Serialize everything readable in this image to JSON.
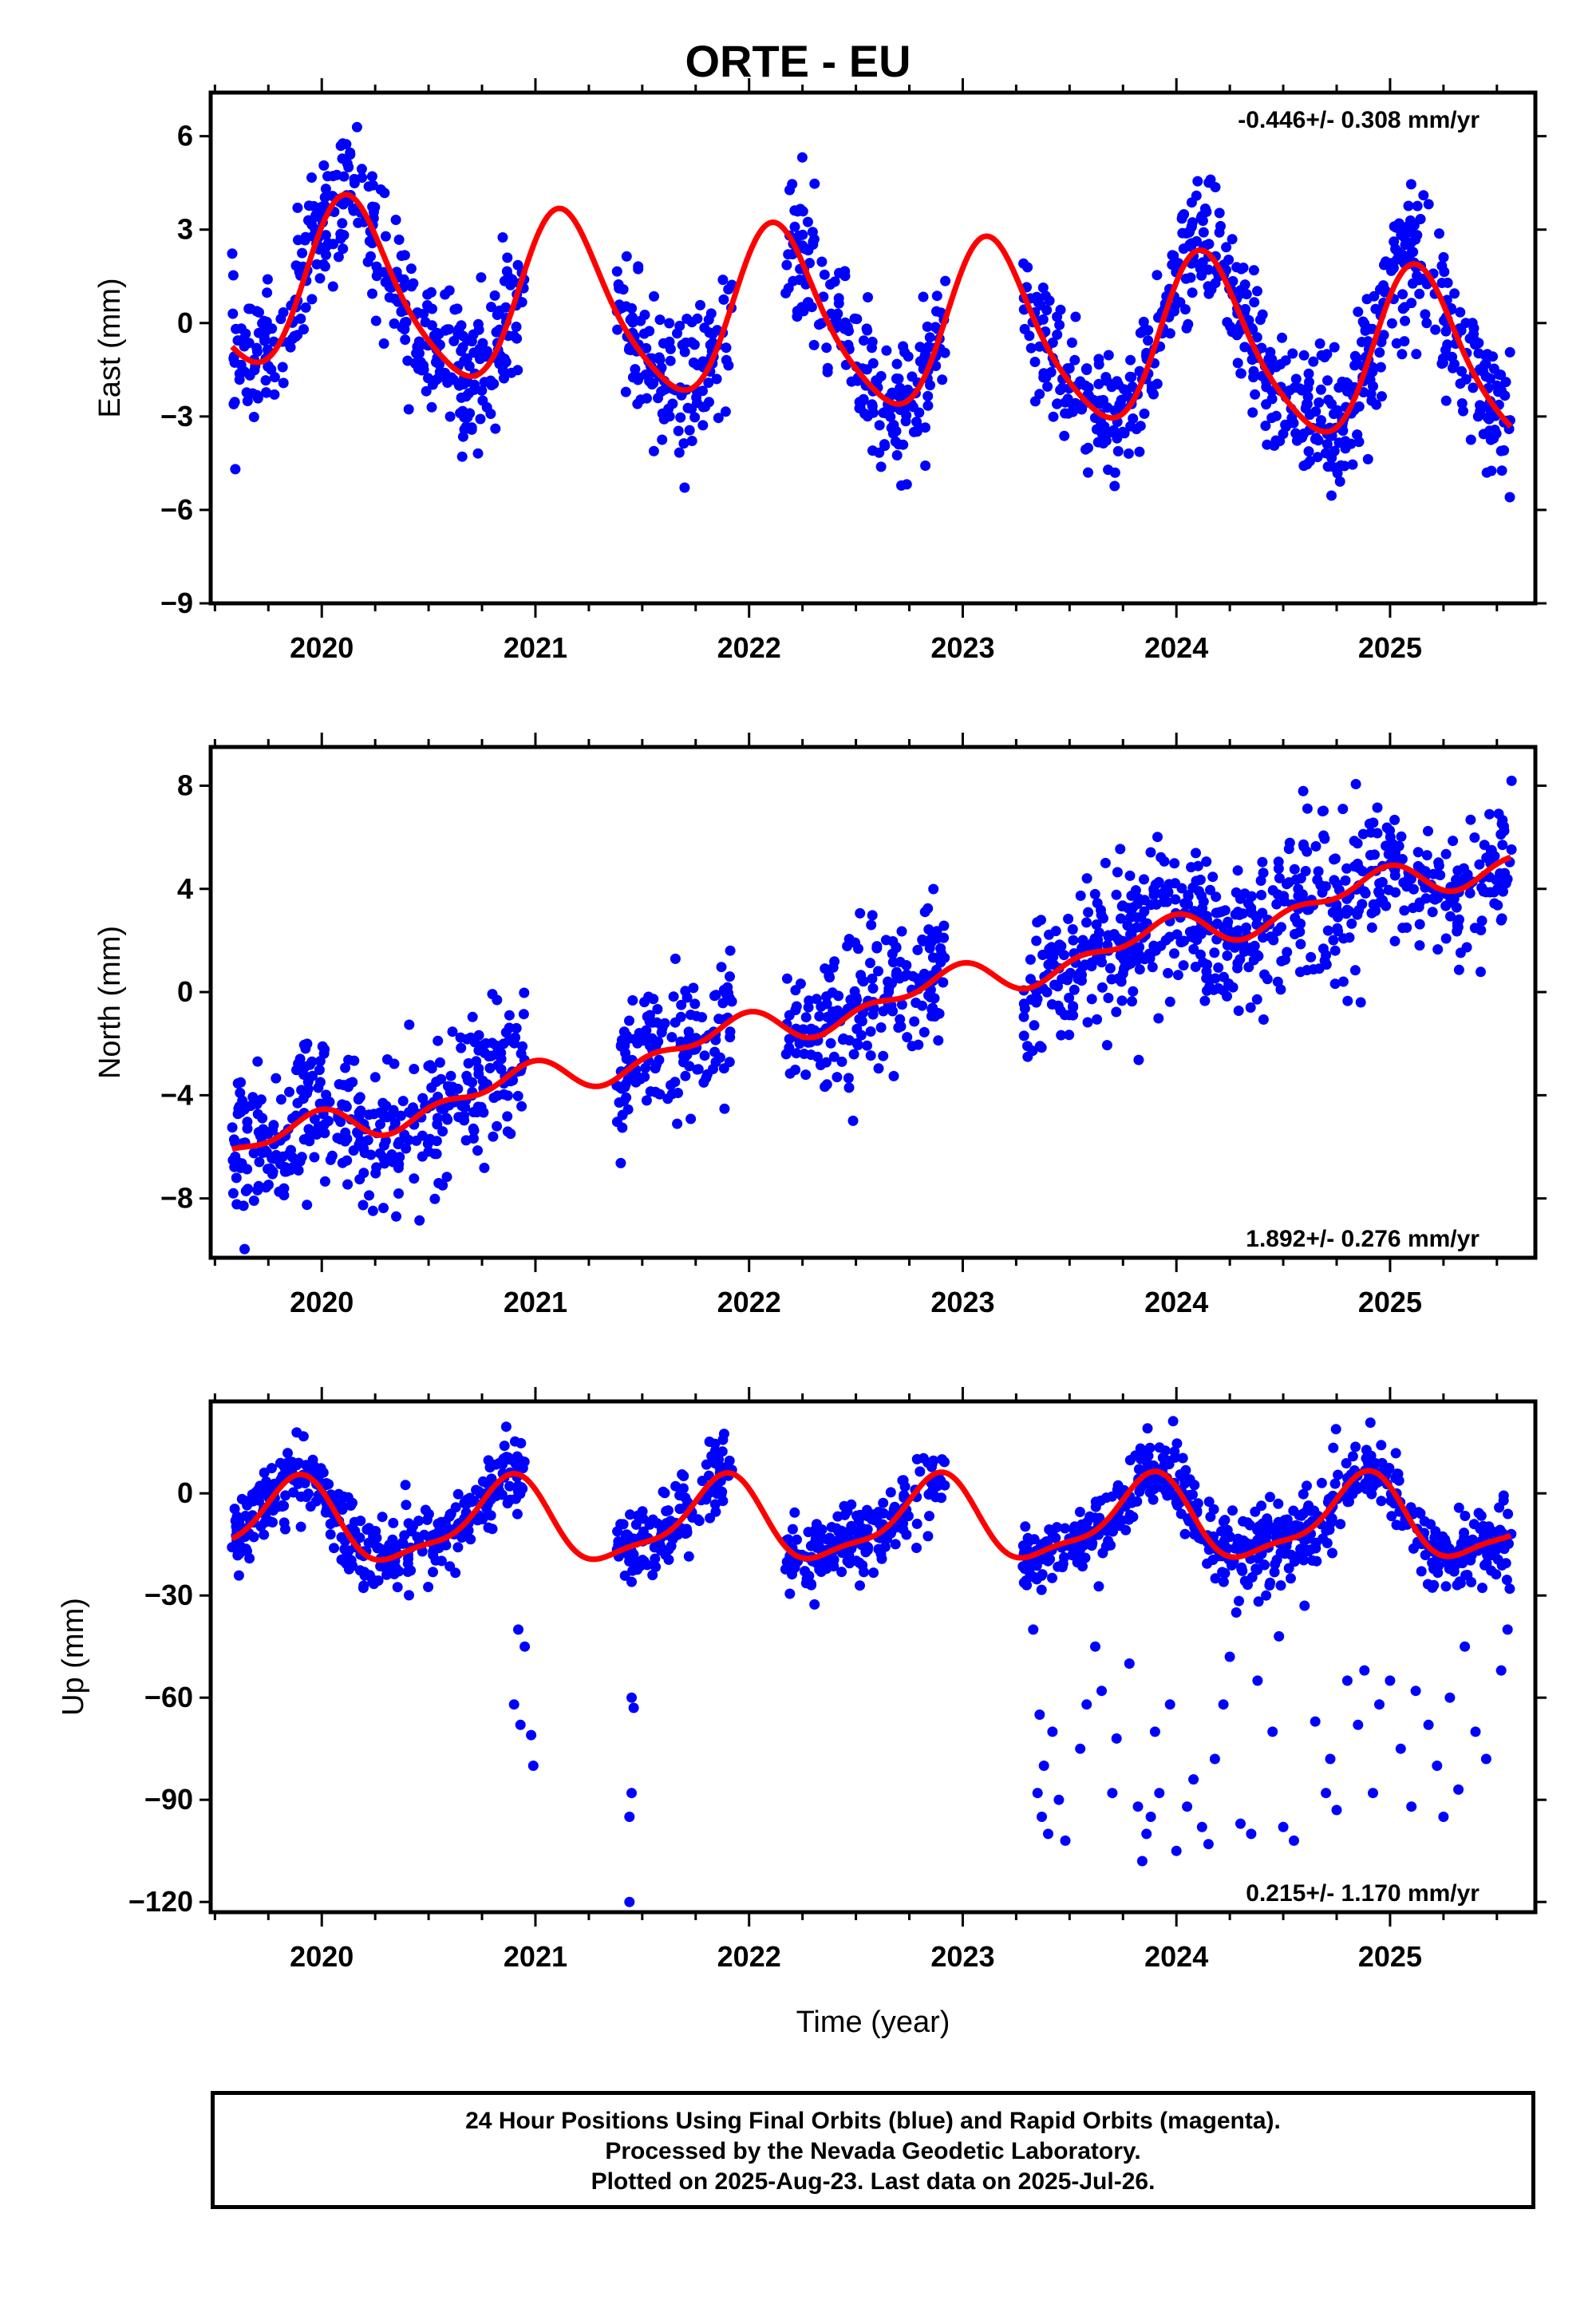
{
  "title": "ORTE - EU",
  "footer": {
    "line1": "24 Hour Positions Using Final Orbits (blue) and Rapid Orbits (magenta).",
    "line2": "Processed by the Nevada Geodetic Laboratory.",
    "line3": "Plotted on 2025-Aug-23. Last data on 2025-Jul-26."
  },
  "colors": {
    "points": "#0000ff",
    "fit": "#ff0000",
    "frame": "#000000"
  },
  "chart_data": [
    {
      "type": "scatter",
      "ylabel": "East (mm)",
      "xlabel": "",
      "xlim": [
        2019.48,
        2025.68
      ],
      "ylim": [
        -9,
        7.4
      ],
      "yticks": [
        -9,
        -6,
        -3,
        0,
        3,
        6
      ],
      "xticks": [
        2020,
        2021,
        2022,
        2023,
        2024,
        2025
      ],
      "rate_text": "-0.446+/- 0.308 mm/yr",
      "rate_position": "top-right",
      "series": [
        {
          "kind": "points",
          "segments": [
            [
              2019.58,
              2020.95
            ],
            [
              2021.38,
              2021.92
            ],
            [
              2022.17,
              2022.92
            ],
            [
              2023.28,
              2025.57
            ]
          ],
          "model": {
            "t0": 2022.5,
            "offset": 0.0,
            "trend": -0.446,
            "a1": 2.7,
            "p1": 0.11,
            "a2": 0.45,
            "p2": 0.55,
            "noise": 1.1
          }
        },
        {
          "kind": "fit",
          "model": {
            "t0": 2022.5,
            "offset": 0.0,
            "trend": -0.446,
            "a1": 2.7,
            "p1": 0.11,
            "a2": 0.45,
            "p2": 0.55
          }
        }
      ]
    },
    {
      "type": "scatter",
      "ylabel": "North (mm)",
      "xlabel": "",
      "xlim": [
        2019.48,
        2025.68
      ],
      "ylim": [
        -10.3,
        9.5
      ],
      "yticks": [
        -8,
        -4,
        0,
        4,
        8
      ],
      "xticks": [
        2020,
        2021,
        2022,
        2023,
        2024,
        2025
      ],
      "rate_text": "1.892+/- 0.276 mm/yr",
      "rate_position": "bottom-right",
      "series": [
        {
          "kind": "points",
          "segments": [
            [
              2019.58,
              2020.95
            ],
            [
              2021.38,
              2021.92
            ],
            [
              2022.17,
              2022.92
            ],
            [
              2023.28,
              2025.57
            ]
          ],
          "model": {
            "t0": 2022.5,
            "offset": -0.6,
            "trend": 1.892,
            "a1": 0.55,
            "p1": 0.35,
            "a2": 0.35,
            "p2": 0.6,
            "noise": 1.4
          }
        },
        {
          "kind": "fit",
          "model": {
            "t0": 2022.5,
            "offset": -0.6,
            "trend": 1.892,
            "a1": 0.55,
            "p1": 0.35,
            "a2": 0.35,
            "p2": 0.6
          }
        }
      ]
    },
    {
      "type": "scatter",
      "ylabel": "Up (mm)",
      "xlabel": "Time (year)",
      "xlim": [
        2019.48,
        2025.68
      ],
      "ylim": [
        -123,
        27
      ],
      "yticks": [
        -120,
        -90,
        -60,
        -30,
        0
      ],
      "xticks": [
        2020,
        2021,
        2022,
        2023,
        2024,
        2025
      ],
      "rate_text": "0.215+/- 1.170 mm/yr",
      "rate_position": "bottom-right",
      "series": [
        {
          "kind": "points",
          "segments": [
            [
              2019.58,
              2020.95
            ],
            [
              2021.38,
              2021.92
            ],
            [
              2022.17,
              2022.92
            ],
            [
              2023.28,
              2025.57
            ]
          ],
          "model": {
            "t0": 2022.5,
            "offset": -8.5,
            "trend": 0.215,
            "a1": 11.5,
            "p1": 0.38,
            "a2": 3.5,
            "p2": 0.7,
            "noise": 5.5
          },
          "outliers": [
            [
              2020.92,
              -40
            ],
            [
              2020.95,
              -45
            ],
            [
              2020.9,
              -62
            ],
            [
              2020.93,
              -68
            ],
            [
              2020.98,
              -71
            ],
            [
              2020.99,
              -80
            ],
            [
              2021.45,
              -26
            ],
            [
              2021.45,
              -60
            ],
            [
              2021.46,
              -63
            ],
            [
              2021.45,
              -88
            ],
            [
              2021.44,
              -95
            ],
            [
              2021.44,
              -120
            ],
            [
              2023.33,
              -40
            ],
            [
              2023.36,
              -65
            ],
            [
              2023.38,
              -80
            ],
            [
              2023.35,
              -88
            ],
            [
              2023.37,
              -95
            ],
            [
              2023.4,
              -100
            ],
            [
              2023.42,
              -70
            ],
            [
              2023.45,
              -90
            ],
            [
              2023.48,
              -102
            ],
            [
              2023.55,
              -75
            ],
            [
              2023.58,
              -62
            ],
            [
              2023.62,
              -45
            ],
            [
              2023.65,
              -58
            ],
            [
              2023.7,
              -88
            ],
            [
              2023.72,
              -72
            ],
            [
              2023.78,
              -50
            ],
            [
              2023.82,
              -92
            ],
            [
              2023.86,
              -100
            ],
            [
              2023.84,
              -108
            ],
            [
              2023.88,
              -95
            ],
            [
              2023.9,
              -70
            ],
            [
              2023.92,
              -88
            ],
            [
              2023.97,
              -62
            ],
            [
              2024.0,
              -105
            ],
            [
              2024.05,
              -92
            ],
            [
              2024.08,
              -84
            ],
            [
              2024.12,
              -98
            ],
            [
              2024.15,
              -103
            ],
            [
              2024.18,
              -78
            ],
            [
              2024.22,
              -62
            ],
            [
              2024.25,
              -48
            ],
            [
              2024.28,
              -35
            ],
            [
              2024.3,
              -97
            ],
            [
              2024.35,
              -100
            ],
            [
              2024.38,
              -55
            ],
            [
              2024.42,
              -30
            ],
            [
              2024.45,
              -70
            ],
            [
              2024.48,
              -42
            ],
            [
              2024.5,
              -98
            ],
            [
              2024.55,
              -102
            ],
            [
              2024.6,
              -33
            ],
            [
              2024.65,
              -67
            ],
            [
              2024.7,
              -88
            ],
            [
              2024.72,
              -78
            ],
            [
              2024.75,
              -93
            ],
            [
              2024.8,
              -55
            ],
            [
              2024.85,
              -68
            ],
            [
              2024.88,
              -52
            ],
            [
              2024.92,
              -88
            ],
            [
              2024.95,
              -62
            ],
            [
              2025.0,
              -55
            ],
            [
              2025.05,
              -75
            ],
            [
              2025.1,
              -92
            ],
            [
              2025.12,
              -58
            ],
            [
              2025.18,
              -68
            ],
            [
              2025.22,
              -80
            ],
            [
              2025.25,
              -95
            ],
            [
              2025.28,
              -60
            ],
            [
              2025.32,
              -87
            ],
            [
              2025.35,
              -45
            ],
            [
              2025.4,
              -70
            ],
            [
              2025.45,
              -78
            ],
            [
              2025.52,
              -52
            ],
            [
              2025.55,
              -40
            ],
            [
              2025.56,
              -28
            ]
          ]
        },
        {
          "kind": "fit",
          "model": {
            "t0": 2022.5,
            "offset": -8.5,
            "trend": 0.215,
            "a1": 11.5,
            "p1": 0.38,
            "a2": 3.5,
            "p2": 0.7
          }
        }
      ]
    }
  ]
}
